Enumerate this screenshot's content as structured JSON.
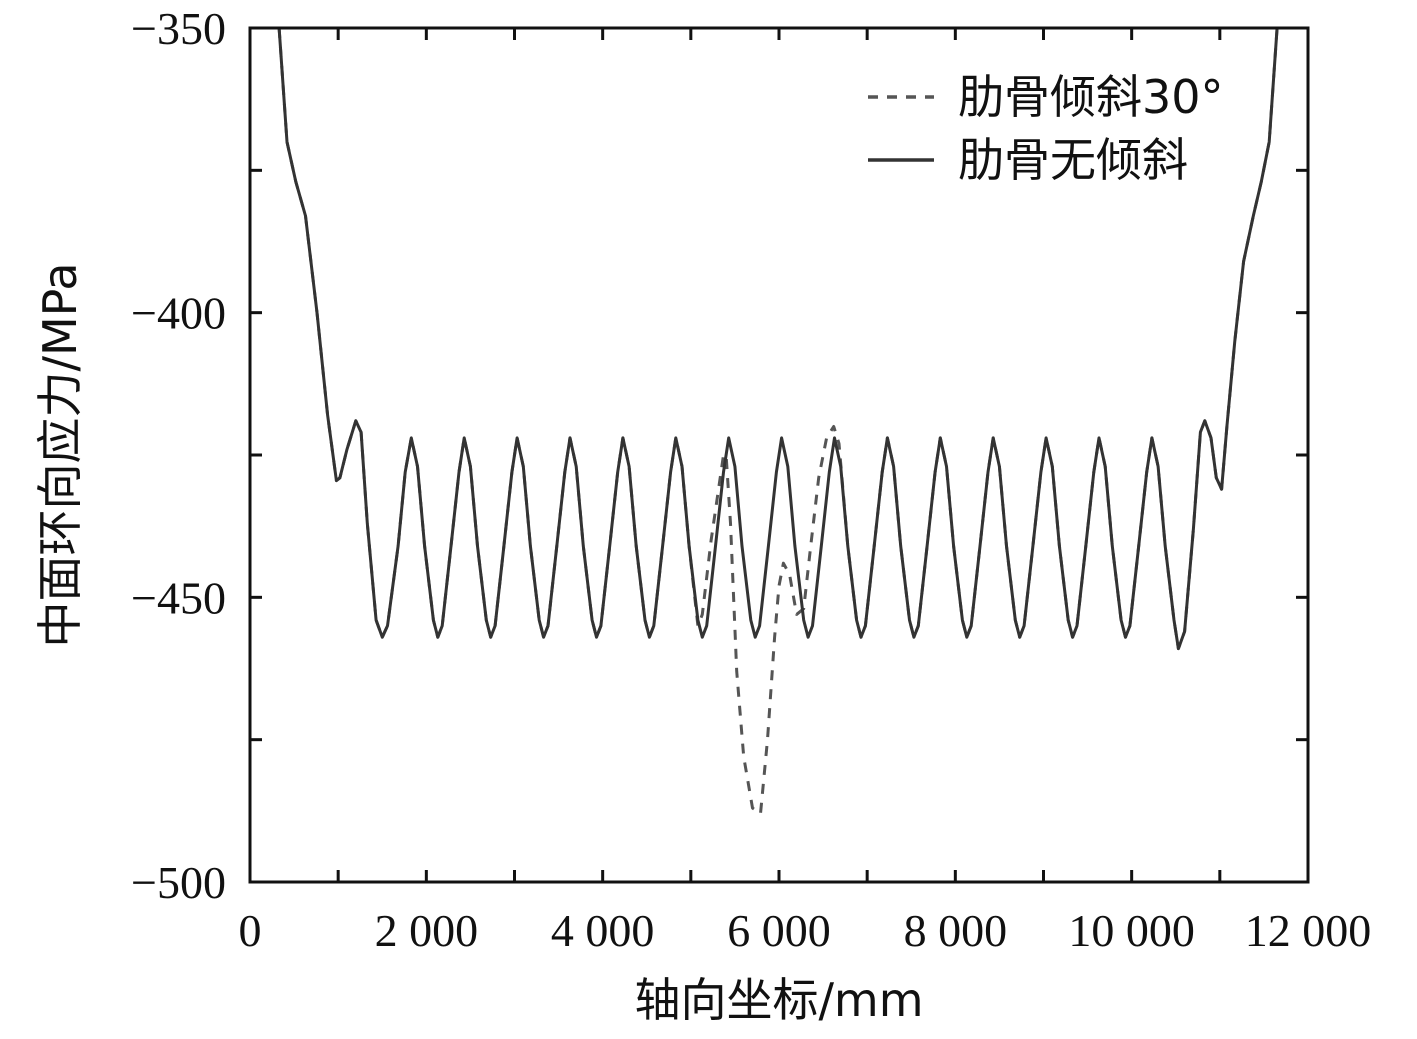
{
  "chart_data": {
    "type": "line",
    "title": "",
    "xlabel": "轴向坐标/mm",
    "ylabel": "中面环向应力/MPa",
    "xlim": [
      0,
      12000
    ],
    "ylim": [
      -500,
      -350
    ],
    "x_ticks": [
      0,
      2000,
      4000,
      6000,
      8000,
      10000,
      12000
    ],
    "x_tick_labels": [
      "0",
      "2 000",
      "4 000",
      "6 000",
      "8 000",
      "10 000",
      "12 000"
    ],
    "y_ticks": [
      -350,
      -400,
      -450,
      -500
    ],
    "y_tick_labels": [
      "−350",
      "−400",
      "−450",
      "−500"
    ],
    "grid": false,
    "legend_position": "top-right",
    "series": [
      {
        "name": "肋骨倾斜30°",
        "style": "dashed",
        "color": "#555555",
        "points": [
          [
            330,
            -350
          ],
          [
            420,
            -370
          ],
          [
            520,
            -377
          ],
          [
            630,
            -383
          ],
          [
            760,
            -400
          ],
          [
            880,
            -418
          ],
          [
            980,
            -429.5
          ],
          [
            1020,
            -429
          ],
          [
            1100,
            -424
          ],
          [
            1200,
            -419
          ],
          [
            1260,
            -421
          ],
          [
            1330,
            -437
          ],
          [
            1430,
            -454
          ],
          [
            1500,
            -457
          ],
          [
            1560,
            -455
          ],
          [
            1680,
            -441
          ],
          [
            1760,
            -428
          ],
          [
            1830,
            -422
          ],
          [
            1900,
            -427
          ],
          [
            1980,
            -441
          ],
          [
            2080,
            -454
          ],
          [
            2130,
            -457
          ],
          [
            2180,
            -455
          ],
          [
            2280,
            -441
          ],
          [
            2370,
            -428
          ],
          [
            2430,
            -422
          ],
          [
            2500,
            -427
          ],
          [
            2580,
            -441
          ],
          [
            2680,
            -454
          ],
          [
            2730,
            -457
          ],
          [
            2780,
            -455
          ],
          [
            2880,
            -441
          ],
          [
            2970,
            -428
          ],
          [
            3030,
            -422
          ],
          [
            3100,
            -427
          ],
          [
            3180,
            -441
          ],
          [
            3280,
            -454
          ],
          [
            3330,
            -457
          ],
          [
            3380,
            -455
          ],
          [
            3480,
            -441
          ],
          [
            3570,
            -428
          ],
          [
            3630,
            -422
          ],
          [
            3700,
            -427
          ],
          [
            3780,
            -441
          ],
          [
            3880,
            -454
          ],
          [
            3930,
            -457
          ],
          [
            3980,
            -455
          ],
          [
            4080,
            -441
          ],
          [
            4170,
            -428
          ],
          [
            4230,
            -422
          ],
          [
            4300,
            -427
          ],
          [
            4380,
            -441
          ],
          [
            4480,
            -454
          ],
          [
            4530,
            -457
          ],
          [
            4580,
            -455
          ],
          [
            4680,
            -441
          ],
          [
            4770,
            -428
          ],
          [
            4830,
            -422
          ],
          [
            4900,
            -427
          ],
          [
            4980,
            -441
          ],
          [
            5080,
            -455
          ],
          [
            5130,
            -453
          ],
          [
            5230,
            -440
          ],
          [
            5370,
            -425
          ],
          [
            5400,
            -425
          ],
          [
            5450,
            -437
          ],
          [
            5520,
            -463
          ],
          [
            5600,
            -478
          ],
          [
            5700,
            -487
          ],
          [
            5790,
            -488
          ],
          [
            5870,
            -475
          ],
          [
            5950,
            -457
          ],
          [
            6000,
            -448
          ],
          [
            6050,
            -444
          ],
          [
            6120,
            -446
          ],
          [
            6200,
            -453
          ],
          [
            6280,
            -452
          ],
          [
            6360,
            -441
          ],
          [
            6450,
            -429
          ],
          [
            6540,
            -422
          ],
          [
            6620,
            -420
          ],
          [
            6680,
            -423
          ],
          [
            6780,
            -441
          ],
          [
            6880,
            -454
          ],
          [
            6930,
            -457
          ],
          [
            6980,
            -455
          ],
          [
            7080,
            -441
          ],
          [
            7170,
            -428
          ],
          [
            7230,
            -422
          ],
          [
            7300,
            -427
          ],
          [
            7380,
            -441
          ],
          [
            7480,
            -454
          ],
          [
            7530,
            -457
          ],
          [
            7580,
            -455
          ],
          [
            7680,
            -441
          ],
          [
            7770,
            -428
          ],
          [
            7830,
            -422
          ],
          [
            7900,
            -427
          ],
          [
            7980,
            -441
          ],
          [
            8080,
            -454
          ],
          [
            8130,
            -457
          ],
          [
            8180,
            -455
          ],
          [
            8280,
            -441
          ],
          [
            8370,
            -428
          ],
          [
            8430,
            -422
          ],
          [
            8500,
            -427
          ],
          [
            8580,
            -441
          ],
          [
            8680,
            -454
          ],
          [
            8730,
            -457
          ],
          [
            8780,
            -455
          ],
          [
            8880,
            -441
          ],
          [
            8970,
            -428
          ],
          [
            9030,
            -422
          ],
          [
            9100,
            -427
          ],
          [
            9180,
            -441
          ],
          [
            9280,
            -454
          ],
          [
            9330,
            -457
          ],
          [
            9380,
            -455
          ],
          [
            9480,
            -441
          ],
          [
            9570,
            -428
          ],
          [
            9630,
            -422
          ],
          [
            9700,
            -427
          ],
          [
            9780,
            -441
          ],
          [
            9880,
            -454
          ],
          [
            9930,
            -457
          ],
          [
            9980,
            -455
          ],
          [
            10080,
            -441
          ],
          [
            10170,
            -428
          ],
          [
            10230,
            -422
          ],
          [
            10300,
            -427
          ],
          [
            10380,
            -441
          ],
          [
            10480,
            -454
          ],
          [
            10530,
            -459
          ],
          [
            10600,
            -456
          ],
          [
            10700,
            -438
          ],
          [
            10780,
            -421
          ],
          [
            10830,
            -419
          ],
          [
            10900,
            -422
          ],
          [
            10960,
            -429
          ],
          [
            11020,
            -431
          ],
          [
            11080,
            -420
          ],
          [
            11170,
            -405
          ],
          [
            11270,
            -391
          ],
          [
            11380,
            -383
          ],
          [
            11470,
            -377
          ],
          [
            11560,
            -370
          ],
          [
            11650,
            -350
          ]
        ]
      },
      {
        "name": "肋骨无倾斜",
        "style": "solid",
        "color": "#333333",
        "points": [
          [
            330,
            -350
          ],
          [
            420,
            -370
          ],
          [
            520,
            -377
          ],
          [
            630,
            -383
          ],
          [
            760,
            -400
          ],
          [
            880,
            -418
          ],
          [
            980,
            -429.5
          ],
          [
            1020,
            -429
          ],
          [
            1100,
            -424
          ],
          [
            1200,
            -419
          ],
          [
            1260,
            -421
          ],
          [
            1330,
            -437
          ],
          [
            1430,
            -454
          ],
          [
            1500,
            -457
          ],
          [
            1560,
            -455
          ],
          [
            1680,
            -441
          ],
          [
            1760,
            -428
          ],
          [
            1830,
            -422
          ],
          [
            1900,
            -427
          ],
          [
            1980,
            -441
          ],
          [
            2080,
            -454
          ],
          [
            2130,
            -457
          ],
          [
            2180,
            -455
          ],
          [
            2280,
            -441
          ],
          [
            2370,
            -428
          ],
          [
            2430,
            -422
          ],
          [
            2500,
            -427
          ],
          [
            2580,
            -441
          ],
          [
            2680,
            -454
          ],
          [
            2730,
            -457
          ],
          [
            2780,
            -455
          ],
          [
            2880,
            -441
          ],
          [
            2970,
            -428
          ],
          [
            3030,
            -422
          ],
          [
            3100,
            -427
          ],
          [
            3180,
            -441
          ],
          [
            3280,
            -454
          ],
          [
            3330,
            -457
          ],
          [
            3380,
            -455
          ],
          [
            3480,
            -441
          ],
          [
            3570,
            -428
          ],
          [
            3630,
            -422
          ],
          [
            3700,
            -427
          ],
          [
            3780,
            -441
          ],
          [
            3880,
            -454
          ],
          [
            3930,
            -457
          ],
          [
            3980,
            -455
          ],
          [
            4080,
            -441
          ],
          [
            4170,
            -428
          ],
          [
            4230,
            -422
          ],
          [
            4300,
            -427
          ],
          [
            4380,
            -441
          ],
          [
            4480,
            -454
          ],
          [
            4530,
            -457
          ],
          [
            4580,
            -455
          ],
          [
            4680,
            -441
          ],
          [
            4770,
            -428
          ],
          [
            4830,
            -422
          ],
          [
            4900,
            -427
          ],
          [
            4980,
            -441
          ],
          [
            5080,
            -454
          ],
          [
            5130,
            -457
          ],
          [
            5180,
            -455
          ],
          [
            5280,
            -441
          ],
          [
            5370,
            -428
          ],
          [
            5430,
            -422
          ],
          [
            5500,
            -427
          ],
          [
            5580,
            -441
          ],
          [
            5680,
            -454
          ],
          [
            5730,
            -457
          ],
          [
            5780,
            -455
          ],
          [
            5880,
            -441
          ],
          [
            5970,
            -428
          ],
          [
            6030,
            -422
          ],
          [
            6100,
            -427
          ],
          [
            6180,
            -441
          ],
          [
            6280,
            -454
          ],
          [
            6330,
            -457
          ],
          [
            6380,
            -455
          ],
          [
            6480,
            -441
          ],
          [
            6570,
            -428
          ],
          [
            6630,
            -422
          ],
          [
            6700,
            -427
          ],
          [
            6780,
            -441
          ],
          [
            6880,
            -454
          ],
          [
            6930,
            -457
          ],
          [
            6980,
            -455
          ],
          [
            7080,
            -441
          ],
          [
            7170,
            -428
          ],
          [
            7230,
            -422
          ],
          [
            7300,
            -427
          ],
          [
            7380,
            -441
          ],
          [
            7480,
            -454
          ],
          [
            7530,
            -457
          ],
          [
            7580,
            -455
          ],
          [
            7680,
            -441
          ],
          [
            7770,
            -428
          ],
          [
            7830,
            -422
          ],
          [
            7900,
            -427
          ],
          [
            7980,
            -441
          ],
          [
            8080,
            -454
          ],
          [
            8130,
            -457
          ],
          [
            8180,
            -455
          ],
          [
            8280,
            -441
          ],
          [
            8370,
            -428
          ],
          [
            8430,
            -422
          ],
          [
            8500,
            -427
          ],
          [
            8580,
            -441
          ],
          [
            8680,
            -454
          ],
          [
            8730,
            -457
          ],
          [
            8780,
            -455
          ],
          [
            8880,
            -441
          ],
          [
            8970,
            -428
          ],
          [
            9030,
            -422
          ],
          [
            9100,
            -427
          ],
          [
            9180,
            -441
          ],
          [
            9280,
            -454
          ],
          [
            9330,
            -457
          ],
          [
            9380,
            -455
          ],
          [
            9480,
            -441
          ],
          [
            9570,
            -428
          ],
          [
            9630,
            -422
          ],
          [
            9700,
            -427
          ],
          [
            9780,
            -441
          ],
          [
            9880,
            -454
          ],
          [
            9930,
            -457
          ],
          [
            9980,
            -455
          ],
          [
            10080,
            -441
          ],
          [
            10170,
            -428
          ],
          [
            10230,
            -422
          ],
          [
            10300,
            -427
          ],
          [
            10380,
            -441
          ],
          [
            10480,
            -454
          ],
          [
            10530,
            -459
          ],
          [
            10600,
            -456
          ],
          [
            10700,
            -438
          ],
          [
            10780,
            -421
          ],
          [
            10830,
            -419
          ],
          [
            10900,
            -422
          ],
          [
            10960,
            -429
          ],
          [
            11020,
            -431
          ],
          [
            11080,
            -420
          ],
          [
            11170,
            -405
          ],
          [
            11270,
            -391
          ],
          [
            11380,
            -383
          ],
          [
            11470,
            -377
          ],
          [
            11560,
            -370
          ],
          [
            11650,
            -350
          ]
        ]
      }
    ]
  }
}
